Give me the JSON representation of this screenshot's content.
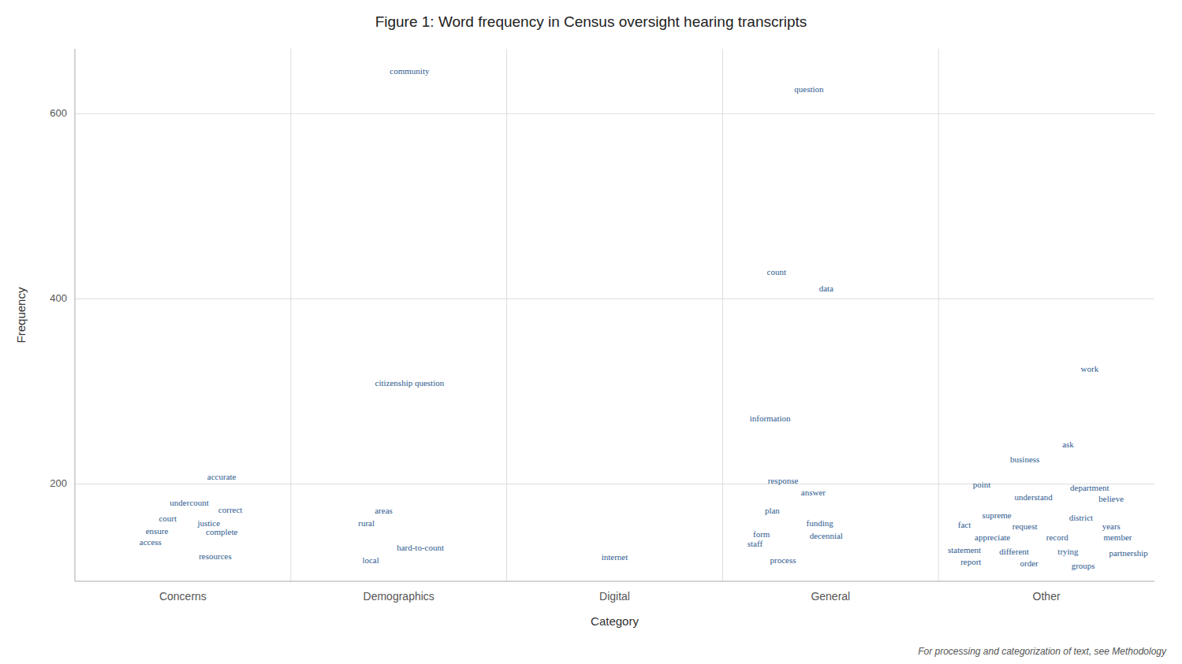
{
  "chart_data": {
    "type": "scatter",
    "title": "Figure 1: Word frequency in Census oversight hearing transcripts",
    "x_label": "Category",
    "y_label": "Frequency",
    "footnote": "For processing and categorization of text, see Methodology",
    "color": "#2E5A8E",
    "grid": true,
    "xlim": [
      0.5,
      5.5
    ],
    "xticks": [
      {
        "value": 1,
        "label": "Concerns"
      },
      {
        "value": 2,
        "label": "Demographics"
      },
      {
        "value": 3,
        "label": "Digital"
      },
      {
        "value": 4,
        "label": "General"
      },
      {
        "value": 5,
        "label": "Other"
      }
    ],
    "ylim": [
      95,
      670
    ],
    "yticks": [
      200,
      400,
      600
    ],
    "labels": [
      "community",
      "question",
      "count",
      "data",
      "citizenship question",
      "work",
      "information",
      "ask",
      "business",
      "accurate",
      "response",
      "point",
      "department",
      "answer",
      "understand",
      "believe",
      "undercount",
      "correct",
      "plan",
      "supreme",
      "district",
      "areas",
      "court",
      "justice",
      "funding",
      "fact",
      "request",
      "years",
      "rural",
      "ensure",
      "complete",
      "form",
      "decennial",
      "appreciate",
      "record",
      "member",
      "access",
      "staff",
      "hard-to-count",
      "statement",
      "different",
      "trying",
      "partnership",
      "resources",
      "local",
      "internet",
      "process",
      "report",
      "order",
      "groups"
    ],
    "x": [
      2.05,
      3.9,
      3.75,
      3.98,
      2.05,
      5.2,
      3.72,
      5.1,
      4.9,
      1.18,
      3.78,
      4.7,
      5.2,
      3.92,
      4.94,
      5.3,
      1.03,
      1.22,
      3.73,
      4.77,
      5.16,
      1.93,
      0.93,
      1.12,
      3.95,
      4.62,
      4.9,
      5.3,
      1.85,
      0.88,
      1.18,
      3.68,
      3.98,
      4.75,
      5.05,
      5.33,
      0.85,
      3.65,
      2.1,
      4.62,
      4.85,
      5.1,
      5.38,
      1.15,
      1.87,
      3.0,
      3.78,
      4.65,
      4.92,
      5.17
    ],
    "values": [
      645,
      625,
      428,
      410,
      308,
      323,
      270,
      242,
      226,
      207,
      203,
      198,
      195,
      190,
      185,
      183,
      179,
      171,
      170,
      165,
      163,
      170,
      162,
      157,
      157,
      155,
      153,
      153,
      157,
      148,
      147,
      145,
      143,
      141,
      141,
      141,
      136,
      135,
      130,
      128,
      126,
      126,
      124,
      121,
      117,
      120,
      117,
      115,
      113,
      111
    ]
  }
}
